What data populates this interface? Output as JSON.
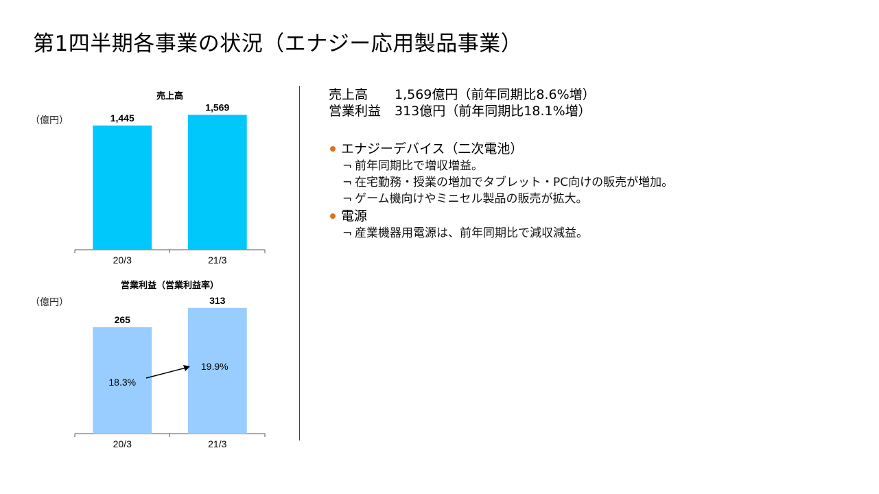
{
  "title": "第1四半期各事業の状況（エナジー応用製品事業）",
  "colors": {
    "sales_bar": "#00C8FA",
    "profit_bar": "#99CCFF",
    "bullet": "#E07020"
  },
  "chart_data": [
    {
      "type": "bar",
      "title": "売上高",
      "unit_label": "（億円）",
      "categories": [
        "20/3",
        "21/3"
      ],
      "values": [
        1445,
        1569
      ],
      "value_labels": [
        "1,445",
        "1,569"
      ],
      "ylim": [
        0,
        1700
      ],
      "grid": false
    },
    {
      "type": "bar",
      "title": "営業利益（営業利益率）",
      "unit_label": "（億円）",
      "categories": [
        "20/3",
        "21/3"
      ],
      "values": [
        265,
        313
      ],
      "value_labels": [
        "265",
        "313"
      ],
      "margins": [
        "18.3%",
        "19.9%"
      ],
      "ylim": [
        0,
        340
      ],
      "grid": false
    }
  ],
  "summary": {
    "sales_label": "売上高",
    "sales_value": "1,569億円（前年同期比8.6%増）",
    "profit_label": "営業利益",
    "profit_value": "313億円（前年同期比18.1%増）"
  },
  "segments": [
    {
      "heading": "エナジーデバイス（二次電池）",
      "items": [
        "前年同期比で増収増益。",
        "在宅勤務・授業の増加でタブレット・PC向けの販売が増加。",
        "ゲーム機向けやミニセル製品の販売が拡大。"
      ]
    },
    {
      "heading": "電源",
      "items": [
        "産業機器用電源は、前年同期比で減収減益。"
      ]
    }
  ],
  "item_mark": "¬"
}
